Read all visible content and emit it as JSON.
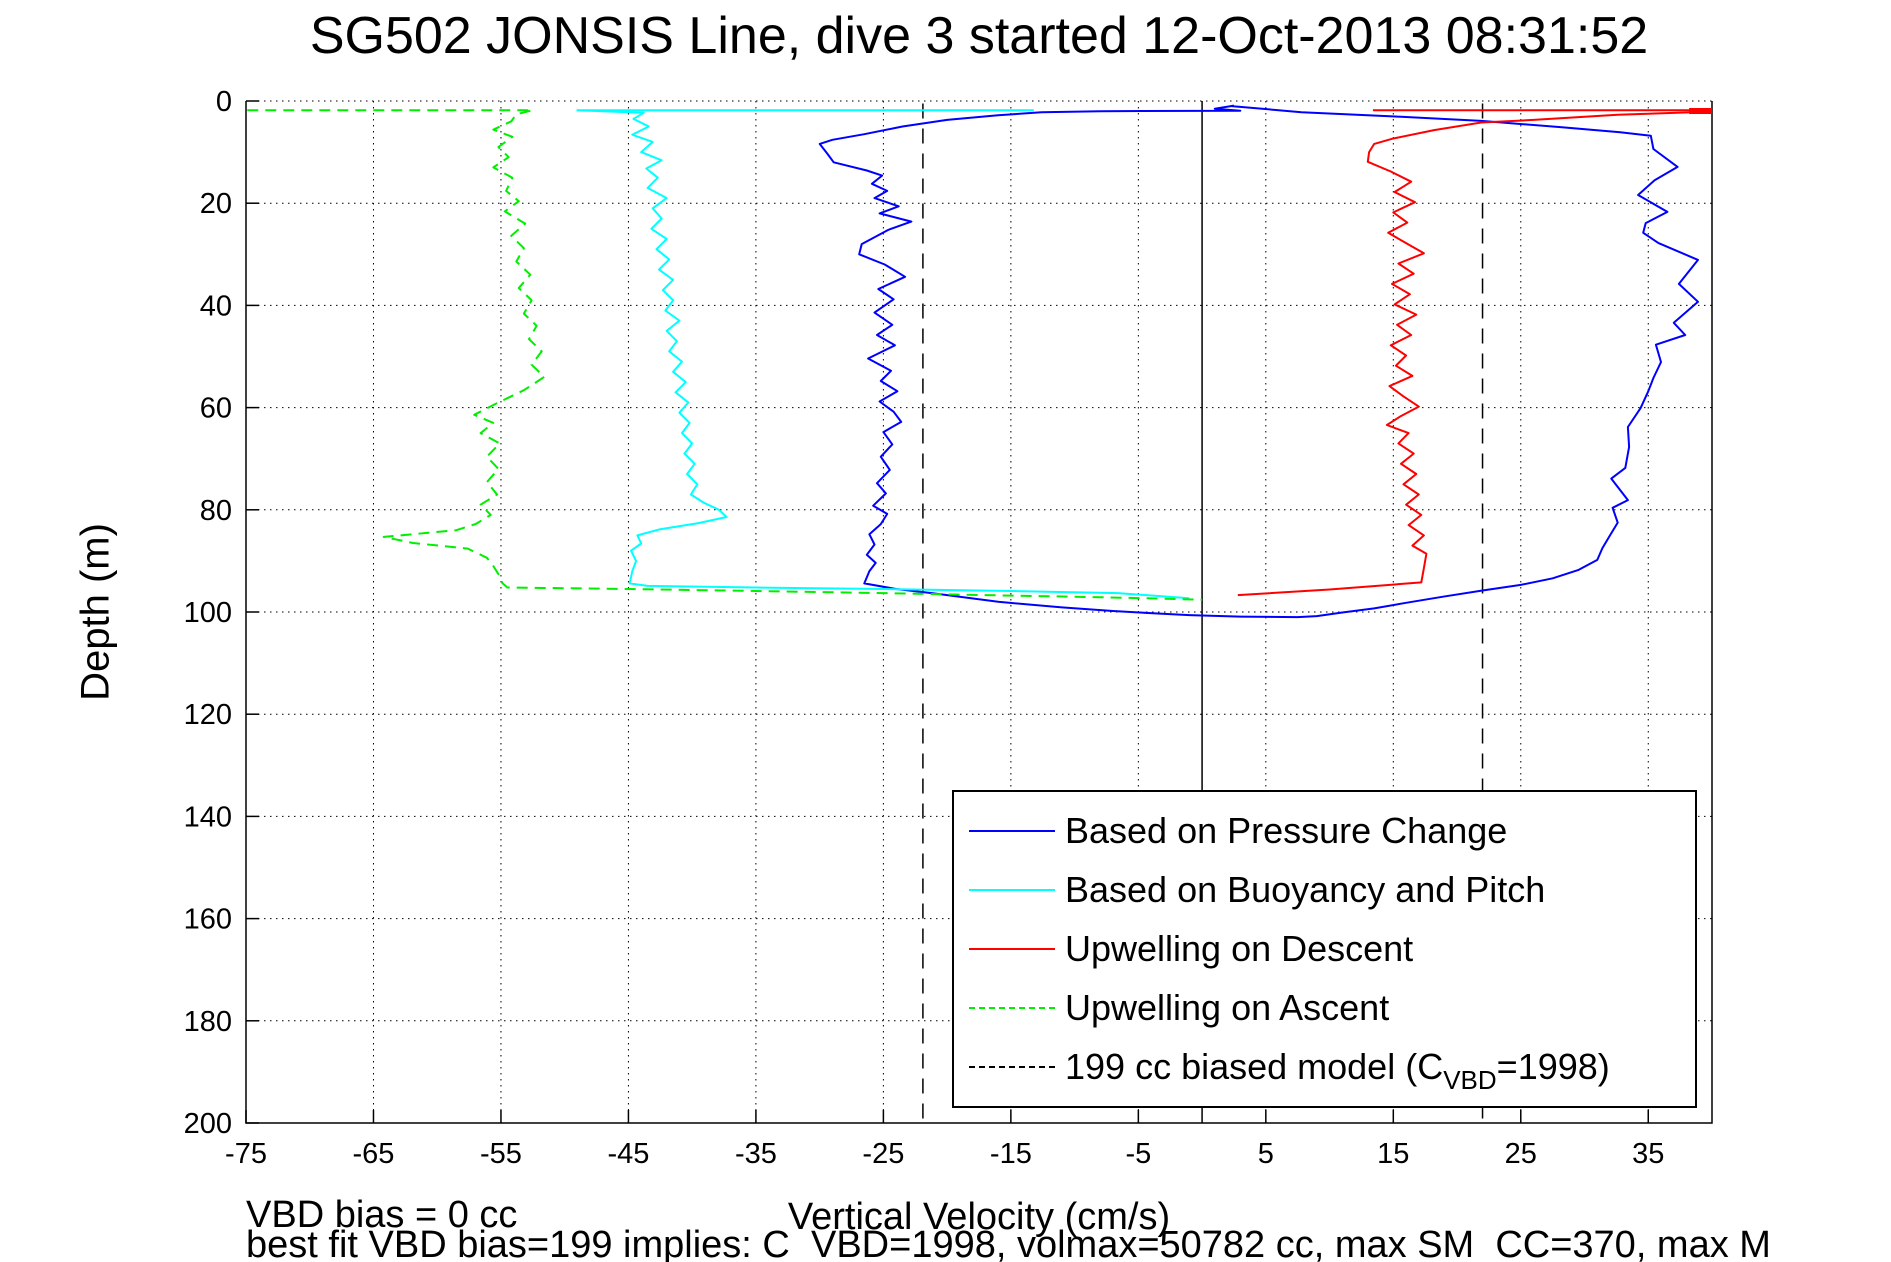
{
  "chart_data": {
    "type": "line",
    "title": "SG502 JONSIS Line, dive 3 started 12-Oct-2013 08:31:52",
    "xlabel": "Vertical Velocity (cm/s)",
    "ylabel": "Depth (m)",
    "xlim": [
      -75,
      40
    ],
    "ylim": [
      0,
      200
    ],
    "y_inverted": true,
    "grid": "dotted",
    "x_ticks": [
      -75,
      -65,
      -55,
      -45,
      -35,
      -25,
      -15,
      -5,
      5,
      15,
      25,
      35
    ],
    "y_ticks": [
      0,
      20,
      40,
      60,
      80,
      100,
      120,
      140,
      160,
      180,
      200
    ],
    "reference_lines": [
      {
        "name": "zero-line",
        "x": 0,
        "style": "solid",
        "color": "#000000",
        "d_from": 0,
        "d_to": 200
      },
      {
        "name": "biased-model-descent",
        "x": -21.9,
        "style": "dashed",
        "color": "#000000",
        "d_from": 0.5,
        "d_to": 200
      },
      {
        "name": "biased-model-ascent",
        "x": 22.0,
        "style": "dashed",
        "color": "#000000",
        "d_from": 0.5,
        "d_to": 200
      }
    ],
    "series": [
      {
        "name": "Based on Pressure Change",
        "color": "#0000ff",
        "style": "solid",
        "width": 2,
        "points": [
          [
            2.5,
            0.9
          ],
          [
            1.0,
            1.5
          ],
          [
            3.0,
            1.9
          ],
          [
            -8,
            2.0
          ],
          [
            -12.6,
            2.2
          ],
          [
            -16,
            2.8
          ],
          [
            -20,
            3.7
          ],
          [
            -23.5,
            5.0
          ],
          [
            -26.5,
            6.5
          ],
          [
            -29,
            7.6
          ],
          [
            -30,
            8.4
          ],
          [
            -29.4,
            10.3
          ],
          [
            -28.9,
            12.0
          ],
          [
            -26.3,
            13.6
          ],
          [
            -25.1,
            14.6
          ],
          [
            -25.9,
            16.2
          ],
          [
            -24.7,
            17.6
          ],
          [
            -25.7,
            19.0
          ],
          [
            -23.8,
            20.6
          ],
          [
            -25.3,
            22.0
          ],
          [
            -22.8,
            23.6
          ],
          [
            -24.6,
            25.2
          ],
          [
            -26.7,
            28.0
          ],
          [
            -26.9,
            30.0
          ],
          [
            -24.9,
            32.0
          ],
          [
            -23.3,
            34.4
          ],
          [
            -25.4,
            36.8
          ],
          [
            -24.2,
            38.8
          ],
          [
            -25.7,
            41.4
          ],
          [
            -24.3,
            43.8
          ],
          [
            -25.5,
            45.8
          ],
          [
            -24.1,
            47.8
          ],
          [
            -26.2,
            50.4
          ],
          [
            -24.4,
            52.8
          ],
          [
            -25.2,
            54.8
          ],
          [
            -23.9,
            56.8
          ],
          [
            -25.3,
            58.8
          ],
          [
            -24.2,
            60.8
          ],
          [
            -23.6,
            62.8
          ],
          [
            -25.0,
            64.8
          ],
          [
            -24.3,
            67.2
          ],
          [
            -25.2,
            69.6
          ],
          [
            -24.5,
            72.2
          ],
          [
            -25.5,
            74.8
          ],
          [
            -24.8,
            76.8
          ],
          [
            -25.8,
            79.2
          ],
          [
            -24.7,
            80.8
          ],
          [
            -25.2,
            82.8
          ],
          [
            -26.1,
            84.8
          ],
          [
            -25.7,
            86.8
          ],
          [
            -26.3,
            88.8
          ],
          [
            -25.6,
            90.4
          ],
          [
            -26.1,
            92.0
          ],
          [
            -26.5,
            94.4
          ],
          [
            -24.0,
            95.5
          ],
          [
            -21.2,
            96.3
          ],
          [
            -16,
            98.0
          ],
          [
            -11,
            99.1
          ],
          [
            -7,
            99.8
          ],
          [
            -3.5,
            100.3
          ],
          [
            -1,
            100.6
          ],
          [
            3,
            100.9
          ],
          [
            7.5,
            101.0
          ],
          [
            9,
            100.8
          ],
          [
            11,
            100.1
          ],
          [
            13.5,
            99.3
          ],
          [
            16,
            98.2
          ],
          [
            18.9,
            97.0
          ],
          [
            22,
            95.8
          ],
          [
            25,
            94.7
          ],
          [
            27.5,
            93.4
          ],
          [
            29.5,
            91.8
          ],
          [
            31,
            89.8
          ],
          [
            31.4,
            87.5
          ],
          [
            32.0,
            85.0
          ],
          [
            32.6,
            82.5
          ],
          [
            32.2,
            79.6
          ],
          [
            33.4,
            78.1
          ],
          [
            32.1,
            73.9
          ],
          [
            33.2,
            71.8
          ],
          [
            33.5,
            67.7
          ],
          [
            33.4,
            63.8
          ],
          [
            34.4,
            60.1
          ],
          [
            35.0,
            56.8
          ],
          [
            35.4,
            54.2
          ],
          [
            36.0,
            51.1
          ],
          [
            35.6,
            47.7
          ],
          [
            37.9,
            45.8
          ],
          [
            37.0,
            43.4
          ],
          [
            38.9,
            39.3
          ],
          [
            37.4,
            35.8
          ],
          [
            38.9,
            31.1
          ],
          [
            35.8,
            27.8
          ],
          [
            34.6,
            25.8
          ],
          [
            34.8,
            23.9
          ],
          [
            36.5,
            21.7
          ],
          [
            34.2,
            18.4
          ],
          [
            35.5,
            15.5
          ],
          [
            37.3,
            12.9
          ],
          [
            35.4,
            9.4
          ],
          [
            35.2,
            6.8
          ],
          [
            32.8,
            6.1
          ],
          [
            28.1,
            5.1
          ],
          [
            21.9,
            3.9
          ],
          [
            15.6,
            3.1
          ],
          [
            7.8,
            2.2
          ],
          [
            2.3,
            1.0
          ]
        ]
      },
      {
        "name": "Based on Buoyancy and Pitch",
        "color": "#00ffff",
        "style": "solid",
        "width": 2,
        "points": [
          [
            -13.2,
            1.8
          ],
          [
            -49.0,
            1.8
          ],
          [
            -43.8,
            2.3
          ],
          [
            -44.6,
            3.5
          ],
          [
            -43.4,
            5.0
          ],
          [
            -44.7,
            6.6
          ],
          [
            -43.1,
            8.0
          ],
          [
            -44.0,
            10.0
          ],
          [
            -42.4,
            11.6
          ],
          [
            -43.6,
            13.2
          ],
          [
            -42.7,
            15.0
          ],
          [
            -43.5,
            17.0
          ],
          [
            -42.0,
            19.0
          ],
          [
            -43.1,
            21.0
          ],
          [
            -42.4,
            23.0
          ],
          [
            -43.2,
            25.0
          ],
          [
            -42.0,
            27.0
          ],
          [
            -42.8,
            29.0
          ],
          [
            -41.8,
            31.0
          ],
          [
            -42.6,
            33.0
          ],
          [
            -41.5,
            35.0
          ],
          [
            -42.3,
            37.0
          ],
          [
            -41.5,
            39.0
          ],
          [
            -42.1,
            41.0
          ],
          [
            -41.0,
            43.0
          ],
          [
            -42.0,
            45.0
          ],
          [
            -41.2,
            47.0
          ],
          [
            -41.8,
            49.0
          ],
          [
            -40.8,
            51.0
          ],
          [
            -41.5,
            53.0
          ],
          [
            -40.5,
            55.0
          ],
          [
            -41.3,
            57.0
          ],
          [
            -40.3,
            59.0
          ],
          [
            -41.0,
            61.0
          ],
          [
            -40.2,
            63.0
          ],
          [
            -40.8,
            65.0
          ],
          [
            -40.0,
            67.0
          ],
          [
            -40.6,
            69.0
          ],
          [
            -39.8,
            71.0
          ],
          [
            -40.4,
            73.0
          ],
          [
            -39.6,
            75.0
          ],
          [
            -40.1,
            77.0
          ],
          [
            -39.1,
            78.6
          ],
          [
            -37.9,
            80.0
          ],
          [
            -37.3,
            81.4
          ],
          [
            -39.5,
            82.6
          ],
          [
            -42.5,
            83.8
          ],
          [
            -44.3,
            85.0
          ],
          [
            -44.0,
            86.6
          ],
          [
            -44.8,
            88.0
          ],
          [
            -44.4,
            90.0
          ],
          [
            -44.7,
            92.0
          ],
          [
            -44.9,
            94.4
          ],
          [
            -43.5,
            94.9
          ],
          [
            -35,
            95.2
          ],
          [
            -25,
            95.5
          ],
          [
            -15,
            95.9
          ],
          [
            -6.6,
            96.3
          ],
          [
            -1.0,
            97.3
          ]
        ]
      },
      {
        "name": "Upwelling on Descent",
        "color": "#ff0000",
        "style": "solid",
        "width": 2,
        "points": [
          [
            38.5,
            2.2
          ],
          [
            32.6,
            2.7
          ],
          [
            26.0,
            3.7
          ],
          [
            21.9,
            4.2
          ],
          [
            18.2,
            5.7
          ],
          [
            14.9,
            7.4
          ],
          [
            13.5,
            8.4
          ],
          [
            13.1,
            10.0
          ],
          [
            13.0,
            11.9
          ],
          [
            14.8,
            13.8
          ],
          [
            16.4,
            15.8
          ],
          [
            15.1,
            17.8
          ],
          [
            16.7,
            19.8
          ],
          [
            15.0,
            21.8
          ],
          [
            16.1,
            23.8
          ],
          [
            14.6,
            25.8
          ],
          [
            16.0,
            27.8
          ],
          [
            17.4,
            29.8
          ],
          [
            15.4,
            31.8
          ],
          [
            16.6,
            33.8
          ],
          [
            14.9,
            35.8
          ],
          [
            16.3,
            37.8
          ],
          [
            15.1,
            39.8
          ],
          [
            16.8,
            41.8
          ],
          [
            15.3,
            43.8
          ],
          [
            16.4,
            45.8
          ],
          [
            14.8,
            47.8
          ],
          [
            16.0,
            49.8
          ],
          [
            15.2,
            51.8
          ],
          [
            16.5,
            53.8
          ],
          [
            14.7,
            55.8
          ],
          [
            15.8,
            57.8
          ],
          [
            17.0,
            59.8
          ],
          [
            15.5,
            61.8
          ],
          [
            14.5,
            63.4
          ],
          [
            16.2,
            65.0
          ],
          [
            15.4,
            67.0
          ],
          [
            16.6,
            69.0
          ],
          [
            15.6,
            71.0
          ],
          [
            16.8,
            73.0
          ],
          [
            15.8,
            75.0
          ],
          [
            17.0,
            77.0
          ],
          [
            16.0,
            79.0
          ],
          [
            17.2,
            81.0
          ],
          [
            16.2,
            83.0
          ],
          [
            17.4,
            85.0
          ],
          [
            16.5,
            87.0
          ],
          [
            17.6,
            88.6
          ],
          [
            17.4,
            91.4
          ],
          [
            17.2,
            94.2
          ],
          [
            10.0,
            95.6
          ],
          [
            2.8,
            96.7
          ]
        ]
      },
      {
        "name": "Upwelling on Descent surface line",
        "color": "#ff0000",
        "style": "solid",
        "width": 2,
        "points": [
          [
            13.4,
            1.8
          ],
          [
            40.0,
            1.8
          ]
        ]
      },
      {
        "name": "Upwelling on Descent surface thick end",
        "color": "#ff0000",
        "style": "solid",
        "width": 6,
        "points": [
          [
            38.2,
            1.95
          ],
          [
            40.0,
            1.95
          ]
        ]
      },
      {
        "name": "Upwelling on Ascent",
        "color": "#00ee00",
        "style": "dashed",
        "width": 2,
        "points": [
          [
            -74.9,
            1.8
          ],
          [
            -52.5,
            1.8
          ],
          [
            -53.8,
            2.6
          ],
          [
            -54.2,
            4.0
          ],
          [
            -55.6,
            5.6
          ],
          [
            -54.1,
            7.0
          ],
          [
            -55.2,
            9.0
          ],
          [
            -54.4,
            11.0
          ],
          [
            -55.6,
            13.0
          ],
          [
            -54.1,
            15.0
          ],
          [
            -54.6,
            17.6
          ],
          [
            -53.6,
            19.6
          ],
          [
            -54.7,
            21.6
          ],
          [
            -53.1,
            24.0
          ],
          [
            -54.2,
            26.4
          ],
          [
            -53.2,
            28.8
          ],
          [
            -53.8,
            31.4
          ],
          [
            -52.7,
            34.0
          ],
          [
            -53.6,
            36.6
          ],
          [
            -52.6,
            39.0
          ],
          [
            -53.2,
            41.6
          ],
          [
            -52.2,
            44.0
          ],
          [
            -52.8,
            46.6
          ],
          [
            -51.8,
            49.0
          ],
          [
            -52.6,
            51.6
          ],
          [
            -51.6,
            54.0
          ],
          [
            -53.2,
            56.6
          ],
          [
            -55.2,
            59.0
          ],
          [
            -57.1,
            61.4
          ],
          [
            -55.6,
            63.0
          ],
          [
            -56.6,
            65.0
          ],
          [
            -55.1,
            67.0
          ],
          [
            -56.1,
            69.6
          ],
          [
            -55.2,
            72.0
          ],
          [
            -56.1,
            74.6
          ],
          [
            -55.3,
            77.0
          ],
          [
            -56.6,
            79.0
          ],
          [
            -55.8,
            81.0
          ],
          [
            -57.0,
            82.8
          ],
          [
            -58.5,
            84.0
          ],
          [
            -64.2,
            85.3
          ],
          [
            -61.9,
            86.5
          ],
          [
            -57.6,
            87.6
          ],
          [
            -56.1,
            89.4
          ],
          [
            -55.6,
            91.0
          ],
          [
            -55.1,
            93.0
          ],
          [
            -54.9,
            94.3
          ],
          [
            -54.5,
            95.2
          ],
          [
            -45,
            95.5
          ],
          [
            -35,
            95.9
          ],
          [
            -25,
            96.3
          ],
          [
            -15,
            96.8
          ],
          [
            -8,
            97.1
          ],
          [
            -3,
            97.4
          ],
          [
            0.0,
            97.6
          ]
        ]
      }
    ],
    "legend": {
      "position": "south-east-inside",
      "items": [
        {
          "color": "#0000ff",
          "dash": "solid",
          "label": "Based on Pressure Change"
        },
        {
          "color": "#00ffff",
          "dash": "solid",
          "label": "Based on Buoyancy and Pitch"
        },
        {
          "color": "#ff0000",
          "dash": "solid",
          "label": "Upwelling on Descent"
        },
        {
          "color": "#00ee00",
          "dash": "dashed",
          "label": "Upwelling on Ascent"
        },
        {
          "color": "#000000",
          "dash": "dashed",
          "label_pre": "199 cc biased model (C",
          "label_sub": "VBD",
          "label_post": "=1998)"
        }
      ]
    },
    "annotations": {
      "vbd_bias": "VBD bias = 0 cc",
      "best_fit": "best fit VBD bias=199 implies: C_VBD=1998, volmax=50782 cc, max SM_CC=370, max M"
    }
  }
}
